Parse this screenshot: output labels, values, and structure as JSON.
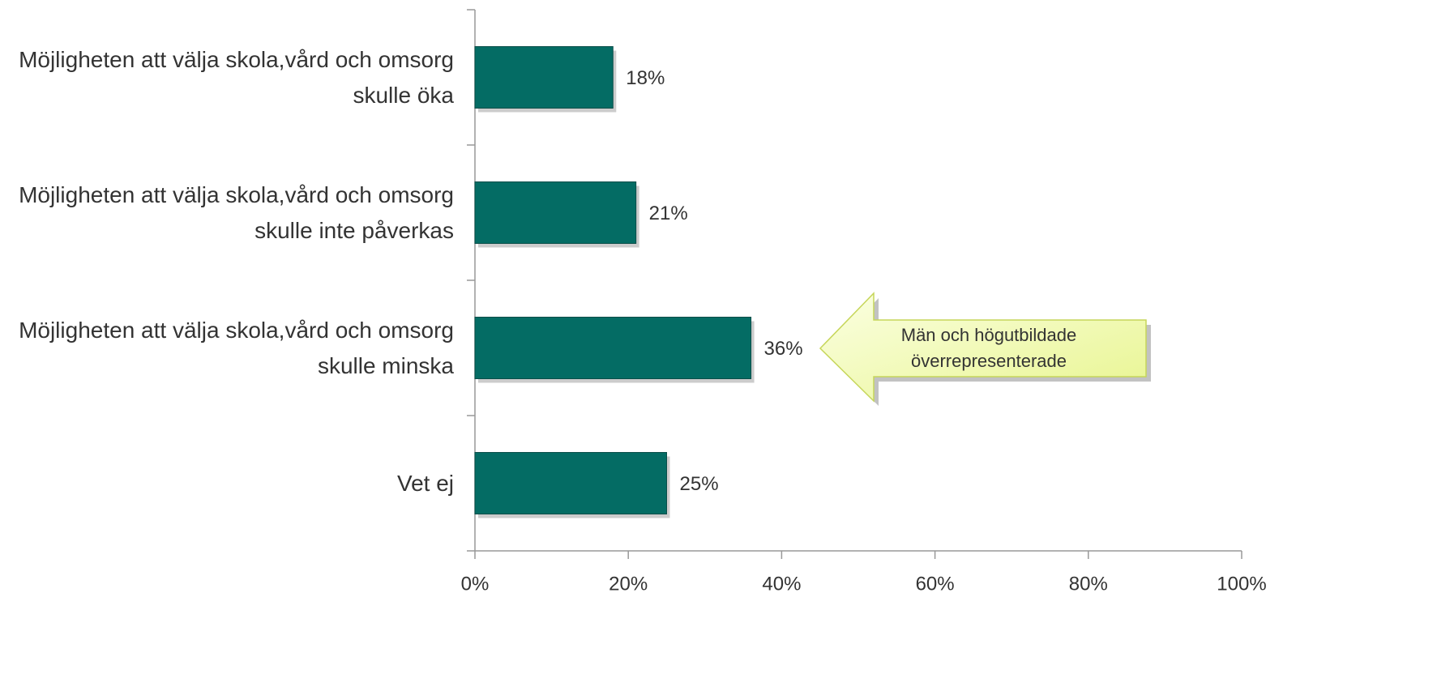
{
  "chart_data": {
    "type": "bar",
    "orientation": "horizontal",
    "categories": [
      "Möjligheten att välja skola,vård och omsorg skulle öka",
      "Möjligheten att välja skola,vård och omsorg skulle inte påverkas",
      "Möjligheten att välja skola,vård och omsorg skulle minska",
      "Vet ej"
    ],
    "values": [
      18,
      21,
      36,
      25
    ],
    "value_labels": [
      "18%",
      "21%",
      "36%",
      "25%"
    ],
    "color": "#046c64",
    "xlim": [
      0,
      100
    ],
    "xticks": [
      {
        "value": 0,
        "label": "0%"
      },
      {
        "value": 20,
        "label": "20%"
      },
      {
        "value": 40,
        "label": "40%"
      },
      {
        "value": 60,
        "label": "60%"
      },
      {
        "value": 80,
        "label": "80%"
      },
      {
        "value": 100,
        "label": "100%"
      }
    ],
    "annotation": "Män och högutbildade överrepresenterade"
  }
}
